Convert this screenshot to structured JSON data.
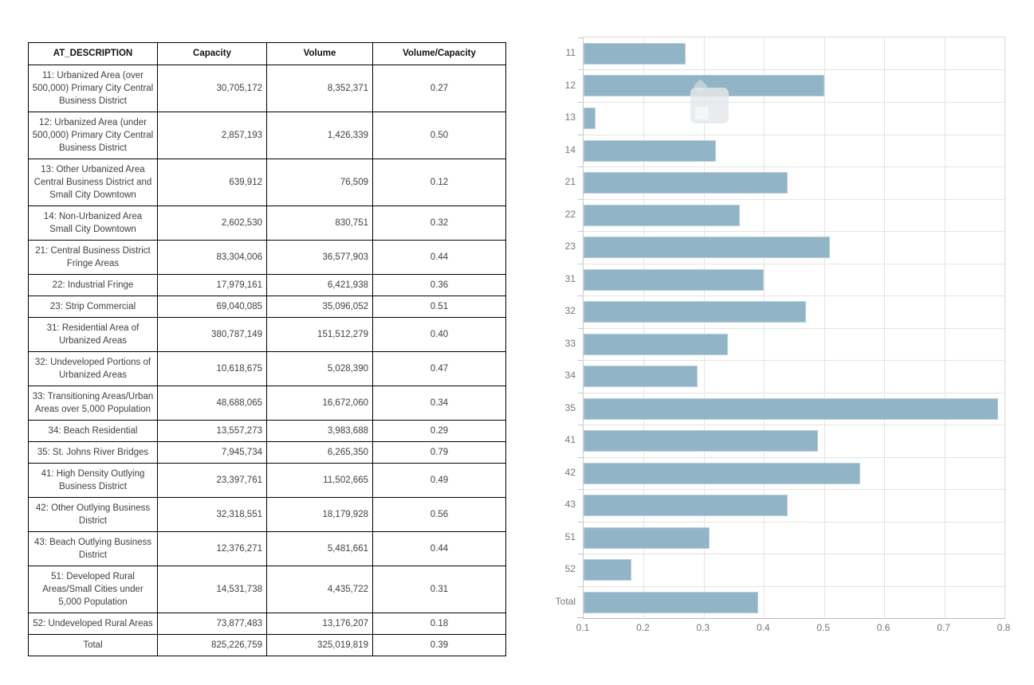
{
  "table": {
    "columns": [
      "AT_DESCRIPTION",
      "Capacity",
      "Volume",
      "Volume/Capacity"
    ],
    "rows": [
      {
        "description": "11: Urbanized Area (over 500,000) Primary City Central Business District",
        "capacity": "30,705,172",
        "volume": "8,352,371",
        "ratio": "0.27"
      },
      {
        "description": "12: Urbanized Area (under 500,000) Primary City Central Business District",
        "capacity": "2,857,193",
        "volume": "1,426,339",
        "ratio": "0.50"
      },
      {
        "description": "13: Other Urbanized Area Central Business District and Small City Downtown",
        "capacity": "639,912",
        "volume": "76,509",
        "ratio": "0.12"
      },
      {
        "description": "14: Non-Urbanized Area Small City Downtown",
        "capacity": "2,602,530",
        "volume": "830,751",
        "ratio": "0.32"
      },
      {
        "description": "21: Central Business District Fringe Areas",
        "capacity": "83,304,006",
        "volume": "36,577,903",
        "ratio": "0.44"
      },
      {
        "description": "22: Industrial Fringe",
        "capacity": "17,979,161",
        "volume": "6,421,938",
        "ratio": "0.36"
      },
      {
        "description": "23: Strip Commercial",
        "capacity": "69,040,085",
        "volume": "35,096,052",
        "ratio": "0.51"
      },
      {
        "description": "31: Residential Area of Urbanized Areas",
        "capacity": "380,787,149",
        "volume": "151,512,279",
        "ratio": "0.40"
      },
      {
        "description": "32: Undeveloped Portions of Urbanized Areas",
        "capacity": "10,618,675",
        "volume": "5,028,390",
        "ratio": "0.47"
      },
      {
        "description": "33: Transitioning Areas/Urban Areas over 5,000 Population",
        "capacity": "48,688,065",
        "volume": "16,672,060",
        "ratio": "0.34"
      },
      {
        "description": "34: Beach Residential",
        "capacity": "13,557,273",
        "volume": "3,983,688",
        "ratio": "0.29"
      },
      {
        "description": "35: St. Johns River Bridges",
        "capacity": "7,945,734",
        "volume": "6,265,350",
        "ratio": "0.79"
      },
      {
        "description": "41: High Density Outlying Business District",
        "capacity": "23,397,761",
        "volume": "11,502,665",
        "ratio": "0.49"
      },
      {
        "description": "42: Other Outlying Business District",
        "capacity": "32,318,551",
        "volume": "18,179,928",
        "ratio": "0.56"
      },
      {
        "description": "43: Beach Outlying Business District",
        "capacity": "12,376,271",
        "volume": "5,481,661",
        "ratio": "0.44"
      },
      {
        "description": "51: Developed Rural Areas/Small Cities under 5,000 Population",
        "capacity": "14,531,738",
        "volume": "4,435,722",
        "ratio": "0.31"
      },
      {
        "description": "52: Undeveloped Rural Areas",
        "capacity": "73,877,483",
        "volume": "13,176,207",
        "ratio": "0.18"
      }
    ],
    "total_row": {
      "description": "Total",
      "capacity": "825,226,759",
      "volume": "325,019,819",
      "ratio": "0.39"
    }
  },
  "chart_data": {
    "type": "bar",
    "orientation": "horizontal",
    "series_name": "Volume/Capacity",
    "categories": [
      "11",
      "12",
      "13",
      "14",
      "21",
      "22",
      "23",
      "31",
      "32",
      "33",
      "34",
      "35",
      "41",
      "42",
      "43",
      "51",
      "52",
      "Total"
    ],
    "values": [
      0.27,
      0.5,
      0.12,
      0.32,
      0.44,
      0.36,
      0.51,
      0.4,
      0.47,
      0.34,
      0.29,
      0.79,
      0.49,
      0.56,
      0.44,
      0.31,
      0.18,
      0.39
    ],
    "xlim": [
      0.1,
      0.8
    ],
    "x_ticks": [
      0.1,
      0.2,
      0.3,
      0.4,
      0.5,
      0.6,
      0.7,
      0.8
    ],
    "x_tick_labels": [
      "0.1",
      "0.2",
      "0.3",
      "0.4",
      "0.5",
      "0.6",
      "0.7",
      "0.8"
    ],
    "grid": true,
    "legend": "none",
    "bar_color": "#92b4c7",
    "grid_color": "#e4e4e4",
    "axis_line_color": "#b9b9b9",
    "axis_label_color": "#767676"
  }
}
